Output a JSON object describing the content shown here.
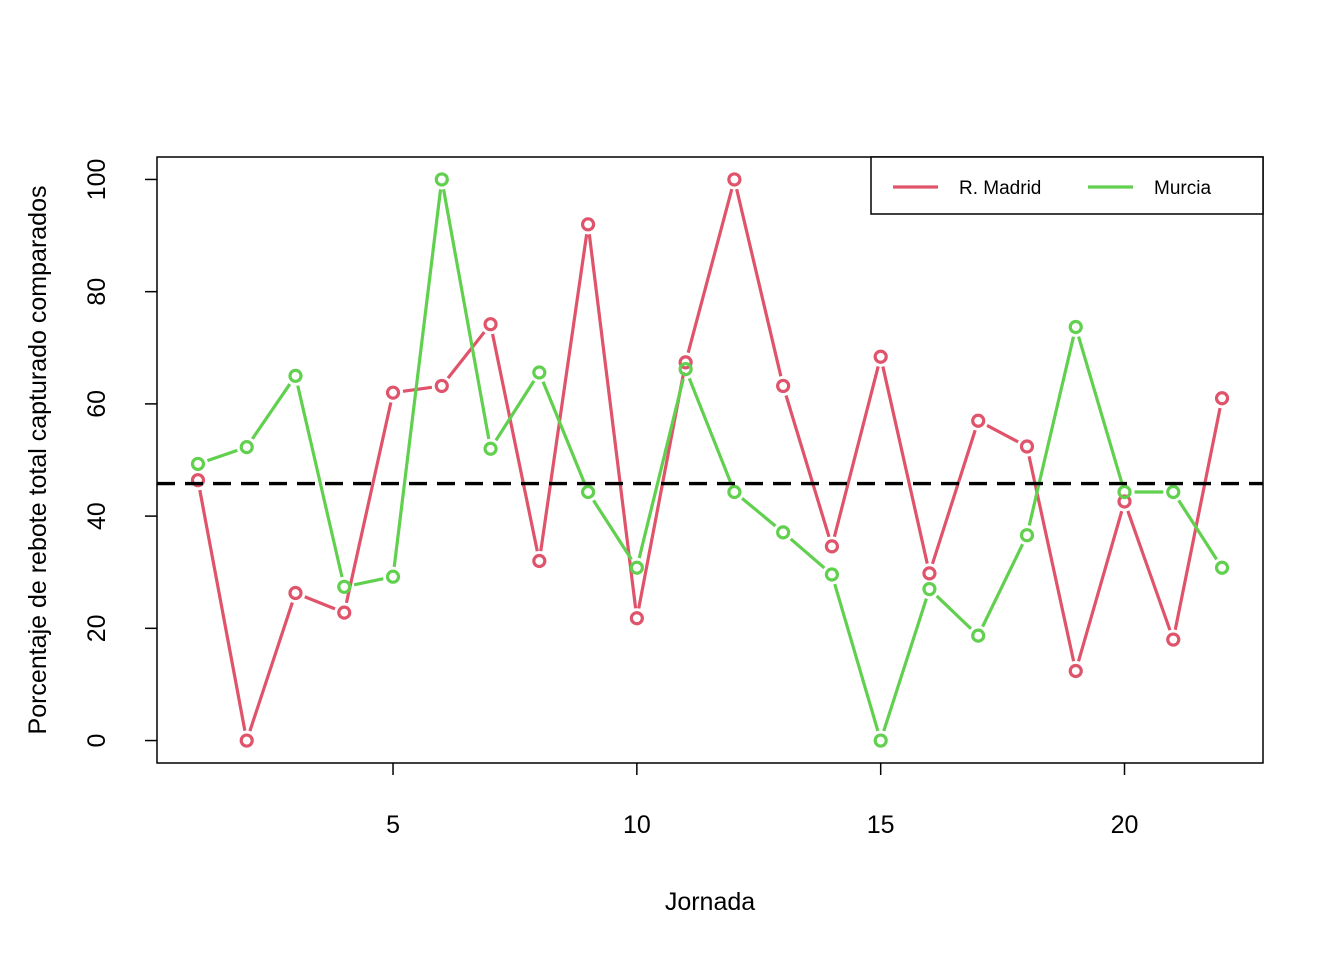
{
  "chart_data": {
    "type": "line",
    "xlabel": "Jornada",
    "ylabel": "Porcentaje de rebote total capturado comparados",
    "xlim": [
      0.16,
      22.84
    ],
    "ylim": [
      -4,
      104
    ],
    "x_ticks": [
      5,
      10,
      15,
      20
    ],
    "y_ticks": [
      0,
      20,
      40,
      60,
      80,
      100
    ],
    "x": [
      1,
      2,
      3,
      4,
      5,
      6,
      7,
      8,
      9,
      10,
      11,
      12,
      13,
      14,
      15,
      16,
      17,
      18,
      19,
      20,
      21,
      22
    ],
    "series": [
      {
        "name": "R. Madrid",
        "color": "#DF536B",
        "values": [
          46.4,
          0,
          26.3,
          22.8,
          62,
          63.2,
          74.2,
          32,
          92,
          21.8,
          67.4,
          100,
          63.2,
          34.6,
          68.4,
          29.8,
          57,
          52.4,
          12.4,
          42.6,
          18,
          61
        ]
      },
      {
        "name": "Murcia",
        "color": "#61D04F",
        "values": [
          49.3,
          52.3,
          65,
          27.4,
          29.2,
          100,
          52,
          65.6,
          44.3,
          30.8,
          66.2,
          44.3,
          37.1,
          29.6,
          0,
          27,
          18.7,
          36.6,
          73.7,
          44.3,
          44.3,
          30.8
        ]
      }
    ],
    "reference_line": {
      "y": 45.8,
      "style": "dashed",
      "color": "#000000"
    },
    "legend": {
      "placement": "top-right",
      "horizontal": true
    },
    "marker": "open-circle",
    "grid": false
  }
}
